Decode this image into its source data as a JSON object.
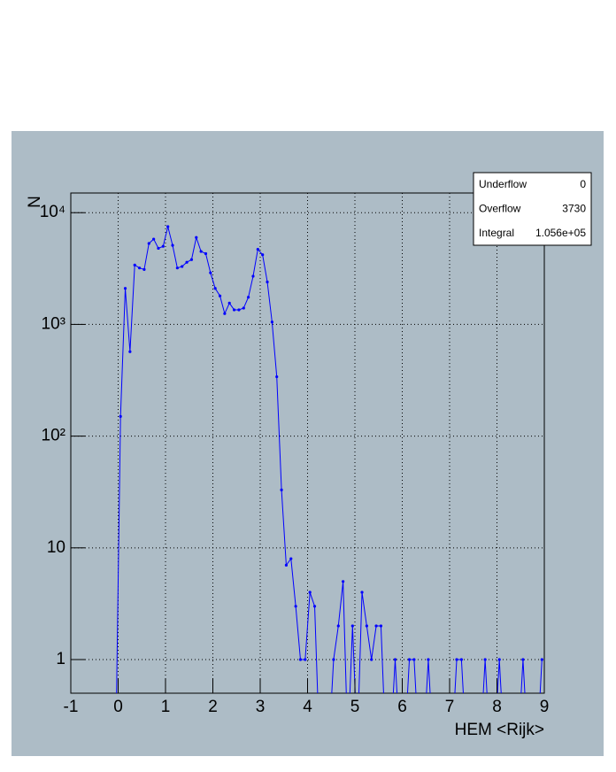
{
  "chart_data": {
    "type": "line",
    "x_label": "HEM <Rijk>",
    "y_label": "N",
    "x": [
      -0.05,
      0.05,
      0.15,
      0.25,
      0.35,
      0.45,
      0.55,
      0.65,
      0.75,
      0.85,
      0.95,
      1.05,
      1.15,
      1.25,
      1.35,
      1.45,
      1.55,
      1.65,
      1.75,
      1.85,
      1.95,
      2.05,
      2.15,
      2.25,
      2.35,
      2.45,
      2.55,
      2.65,
      2.75,
      2.85,
      2.95,
      3.05,
      3.15,
      3.25,
      3.35,
      3.45,
      3.55,
      3.65,
      3.75,
      3.85,
      3.95,
      4.05,
      4.15,
      4.25,
      4.35,
      4.45,
      4.55,
      4.65,
      4.75,
      4.85,
      4.95,
      5.05,
      5.15,
      5.25,
      5.35,
      5.45,
      5.55,
      5.65,
      5.75,
      5.85,
      5.95,
      6.05,
      6.15,
      6.25,
      6.35,
      6.45,
      6.55,
      6.65,
      6.75,
      6.85,
      6.95,
      7.05,
      7.15,
      7.25,
      7.35,
      7.45,
      7.55,
      7.65,
      7.75,
      7.85,
      7.95,
      8.05,
      8.15,
      8.25,
      8.35,
      8.45,
      8.55,
      8.65,
      8.75,
      8.85,
      8.95
    ],
    "series": [
      {
        "name": "N",
        "color": "#0000ff",
        "values": [
          0,
          150,
          2100,
          570,
          3400,
          3200,
          3100,
          5300,
          5800,
          4800,
          5000,
          7500,
          5100,
          3200,
          3300,
          3600,
          3800,
          6000,
          4500,
          4300,
          2900,
          2100,
          1800,
          1250,
          1550,
          1350,
          1350,
          1400,
          1750,
          2700,
          4700,
          4200,
          2400,
          1050,
          340,
          33,
          7,
          8,
          3,
          1,
          1,
          4,
          3,
          0,
          0,
          0,
          1,
          2,
          5,
          0,
          2,
          0,
          4,
          2,
          1,
          2,
          2,
          0,
          0,
          1,
          0,
          0,
          1,
          1,
          0,
          0,
          1,
          0,
          0,
          0,
          0,
          0,
          1,
          1,
          0,
          0,
          0,
          0,
          1,
          0,
          0,
          1,
          0,
          0,
          0,
          0,
          1,
          0,
          0,
          0,
          1
        ]
      }
    ],
    "xlim": [
      -1,
      9
    ],
    "xticks": [
      -1,
      0,
      1,
      2,
      3,
      4,
      5,
      6,
      7,
      8,
      9
    ],
    "ylim": [
      0.5,
      15000
    ],
    "yticks": [
      1,
      10,
      {
        "value": 100,
        "label": "10²"
      },
      {
        "value": 1000,
        "label": "10³"
      },
      {
        "value": 10000,
        "label": "10⁴"
      }
    ],
    "log_y": true,
    "grid": true,
    "stats": [
      [
        "Underflow",
        "0"
      ],
      [
        "Overflow",
        "3730"
      ],
      [
        "Integral",
        "1.056e+05"
      ]
    ]
  }
}
